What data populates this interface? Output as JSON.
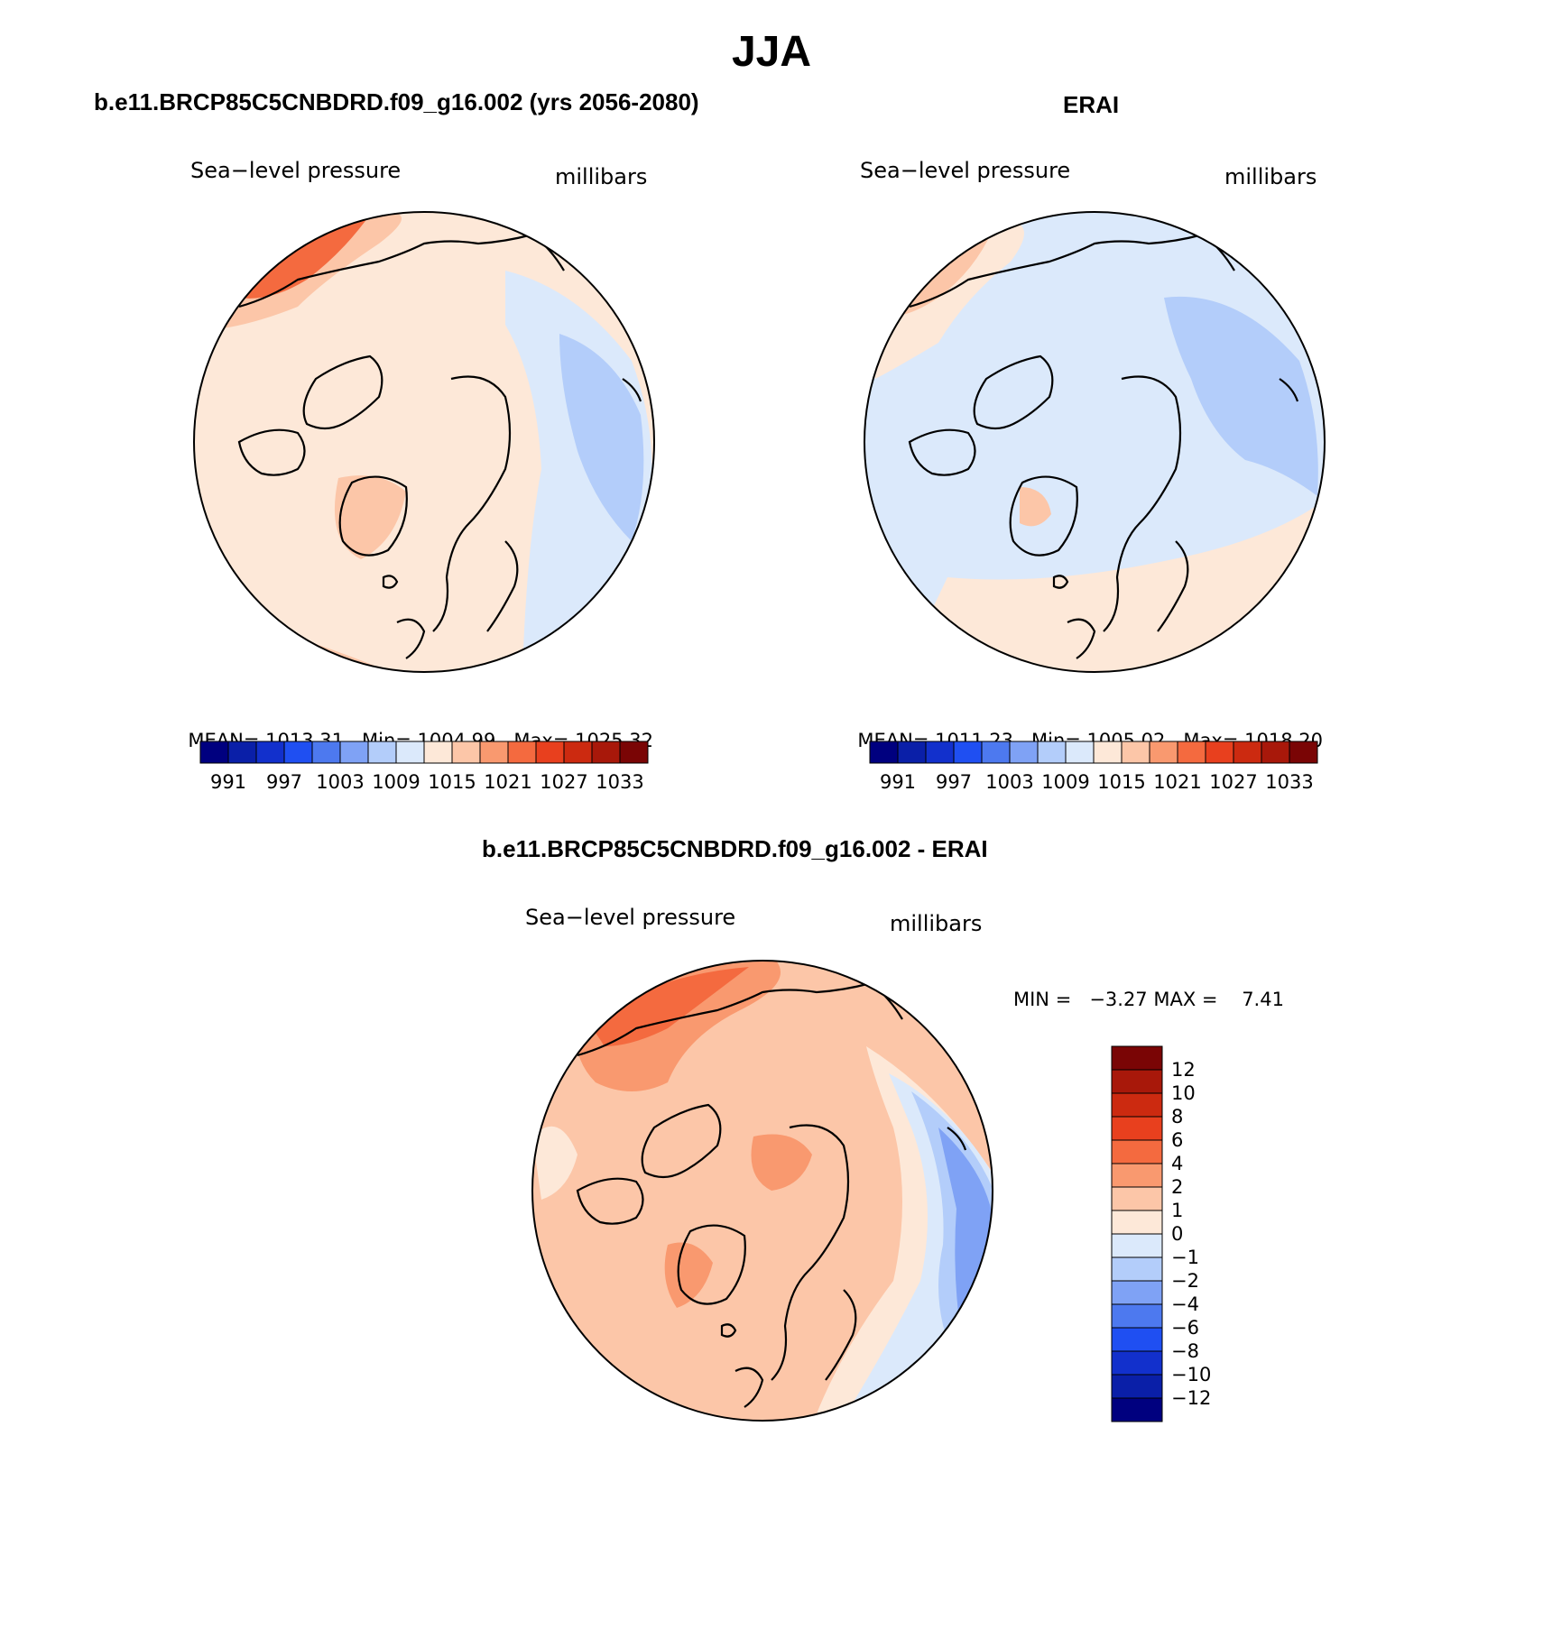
{
  "figure_title": "JJA",
  "panels": [
    {
      "title": "b.e11.BRCP85C5CNBDRD.f09_g16.002 (yrs 2056-2080)",
      "variable": "Sea−level pressure",
      "units": "millibars",
      "stats": {
        "mean_label": "MEAN=",
        "mean": "1013.31",
        "min_label": "Min=",
        "min": "1004.99",
        "max_label": "Max=",
        "max": "1025.32"
      }
    },
    {
      "title": "ERAI",
      "variable": "Sea−level pressure",
      "units": "millibars",
      "stats": {
        "mean_label": "MEAN=",
        "mean": "1011.23",
        "min_label": "Min=",
        "min": "1005.02",
        "max_label": "Max=",
        "max": "1018.20"
      }
    },
    {
      "title": "b.e11.BRCP85C5CNBDRD.f09_g16.002 - ERAI",
      "variable": "Sea−level pressure",
      "units": "millibars",
      "stats_text": "MIN =   −3.27 MAX =    7.41"
    }
  ],
  "abs_colorbar": {
    "colors": [
      "#00007f",
      "#0a1fa8",
      "#1230cc",
      "#1f4ff2",
      "#4d79ef",
      "#7fa2f5",
      "#b3cdfa",
      "#dbe9fb",
      "#fde8d8",
      "#fcc6a8",
      "#f9996f",
      "#f46a3f",
      "#e8401e",
      "#cc2a10",
      "#a8180a",
      "#7a0505"
    ],
    "labels": [
      "991",
      "997",
      "1003",
      "1009",
      "1015",
      "1021",
      "1027",
      "1033"
    ]
  },
  "diff_colorbar": {
    "colors": [
      "#00007f",
      "#0a1fa8",
      "#1230cc",
      "#1f4ff2",
      "#4d79ef",
      "#7fa2f5",
      "#b3cdfa",
      "#dbe9fb",
      "#fde8d8",
      "#fcc6a8",
      "#f9996f",
      "#f46a3f",
      "#e8401e",
      "#cc2a10",
      "#a8180a",
      "#7a0505"
    ],
    "labels": [
      "−12",
      "−10",
      "−8",
      "−6",
      "−4",
      "−2",
      "−1",
      "0",
      "1",
      "2",
      "4",
      "6",
      "8",
      "10",
      "12"
    ]
  }
}
